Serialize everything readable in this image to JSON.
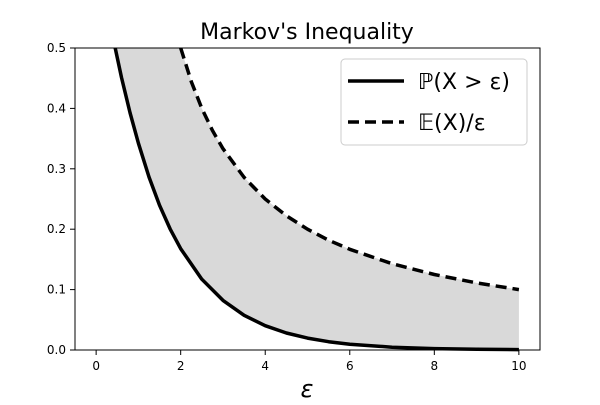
{
  "chart_data": {
    "type": "line",
    "title": "Markov's Inequality",
    "xlabel": "ε",
    "ylabel": "",
    "xlim": [
      -0.5,
      10.5
    ],
    "ylim": [
      0.0,
      0.5
    ],
    "xticks": [
      0,
      2,
      4,
      6,
      8,
      10
    ],
    "yticks": [
      0.0,
      0.1,
      0.2,
      0.3,
      0.4,
      0.5
    ],
    "xtick_labels": [
      "0",
      "2",
      "4",
      "6",
      "8",
      "10"
    ],
    "ytick_labels": [
      "0.0",
      "0.1",
      "0.2",
      "0.3",
      "0.4",
      "0.5"
    ],
    "grid": false,
    "legend_position": "top-right",
    "fill_between_series": true,
    "fill_color": "#d9d9d9",
    "series": [
      {
        "name": "ℙ(X > ε)",
        "style": "solid",
        "color": "#000000",
        "x": [
          0.45,
          0.6,
          0.8,
          1.0,
          1.25,
          1.5,
          1.75,
          2.0,
          2.5,
          3.0,
          3.5,
          4.0,
          4.5,
          5.0,
          5.5,
          6.0,
          7.0,
          8.0,
          9.0,
          10.0
        ],
        "y": [
          0.5,
          0.4512,
          0.393,
          0.3424,
          0.2865,
          0.2397,
          0.2005,
          0.1677,
          0.1173,
          0.0821,
          0.0575,
          0.0402,
          0.0281,
          0.0197,
          0.0138,
          0.0096,
          0.0047,
          0.0023,
          0.0011,
          0.0006
        ]
      },
      {
        "name": "𝔼(X)/ε",
        "style": "dashed",
        "color": "#000000",
        "x": [
          2.0,
          2.25,
          2.5,
          2.75,
          3.0,
          3.5,
          4.0,
          4.5,
          5.0,
          5.5,
          6.0,
          7.0,
          8.0,
          9.0,
          10.0
        ],
        "y": [
          0.5,
          0.4444,
          0.4,
          0.3636,
          0.3333,
          0.2857,
          0.25,
          0.2222,
          0.2,
          0.1818,
          0.1667,
          0.1429,
          0.125,
          0.1111,
          0.1
        ]
      }
    ]
  }
}
